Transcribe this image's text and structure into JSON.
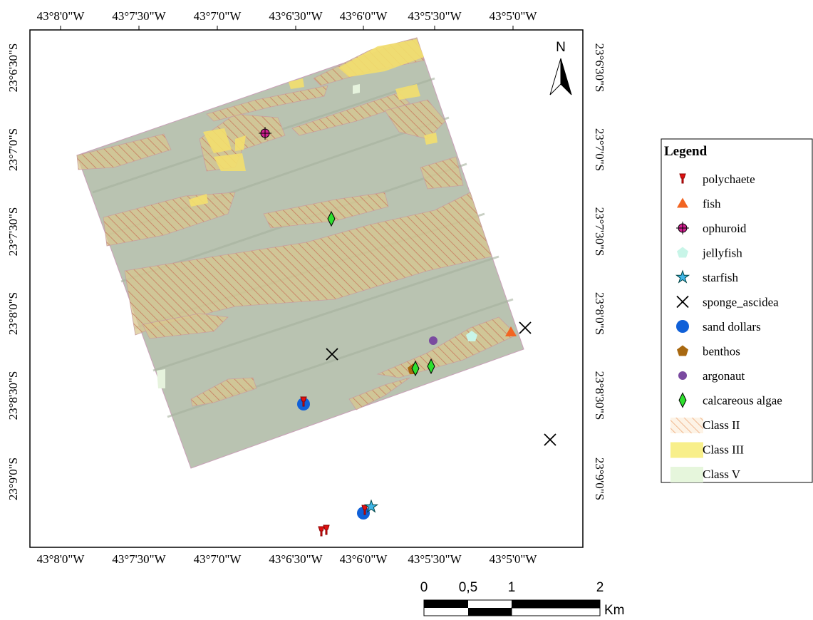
{
  "map": {
    "x_labels": [
      "43°8'0\"W",
      "43°7'30\"W",
      "43°7'0\"W",
      "43°6'30\"W",
      "43°6'0\"W",
      "43°5'30\"W",
      "43°5'0\"W"
    ],
    "y_labels": [
      "23°6'30\"S",
      "23°7'0\"S",
      "23°7'30\"S",
      "23°8'0\"S",
      "23°8'30\"S",
      "23°9'0\"S"
    ],
    "north": "N",
    "legend": {
      "title": "Legend",
      "items": [
        "polychaete",
        "fish",
        "ophuroid",
        "jellyfish",
        "starfish",
        "sponge_ascidea",
        "sand dollars",
        "benthos",
        "argonaut",
        "calcareous algae",
        "Class II",
        "Class III",
        "Class V"
      ]
    },
    "scale": {
      "labels": [
        "0",
        "0,5",
        "1",
        "2"
      ],
      "unit": "Km"
    }
  }
}
